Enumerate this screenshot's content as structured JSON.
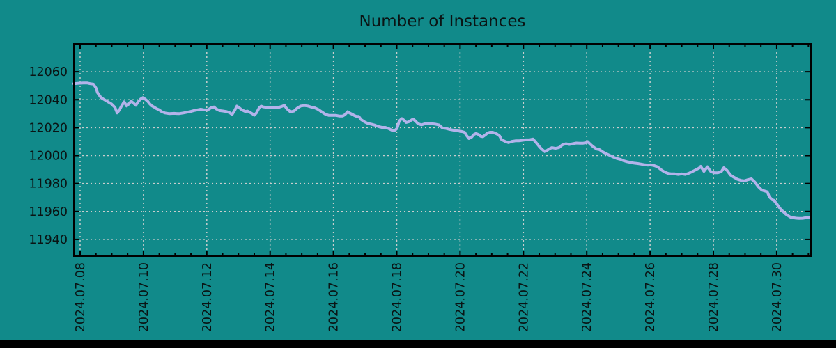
{
  "title": "Number of Instances",
  "colors": {
    "background": "#118a8a",
    "line": "#b2b3ea",
    "grid": "#c9cdcd",
    "axis": "#000000",
    "text": "#0a1414",
    "footer_bar": "#000000"
  },
  "chart_data": {
    "type": "line",
    "title": "Number of Instances",
    "xlabel": "",
    "ylabel": "",
    "grid": true,
    "legend": "none",
    "ylim": [
      11928,
      12080
    ],
    "xlim_days": [
      -0.198,
      23.08
    ],
    "y_ticks": [
      11940,
      11960,
      11980,
      12000,
      12020,
      12040,
      12060
    ],
    "x_ticks": [
      {
        "day": 0,
        "label": "2024.07.08"
      },
      {
        "day": 2,
        "label": "2024.07.10"
      },
      {
        "day": 4,
        "label": "2024.07.12"
      },
      {
        "day": 6,
        "label": "2024.07.14"
      },
      {
        "day": 8,
        "label": "2024.07.16"
      },
      {
        "day": 10,
        "label": "2024.07.18"
      },
      {
        "day": 12,
        "label": "2024.07.20"
      },
      {
        "day": 14,
        "label": "2024.07.22"
      },
      {
        "day": 16,
        "label": "2024.07.24"
      },
      {
        "day": 18,
        "label": "2024.07.26"
      },
      {
        "day": 20,
        "label": "2024.07.28"
      },
      {
        "day": 22,
        "label": "2024.07.30"
      }
    ],
    "minor_x_step_days": 0.5,
    "series": [
      {
        "name": "instances",
        "points": [
          [
            -0.2,
            12051.5
          ],
          [
            -0.05,
            12051.8
          ],
          [
            0.1,
            12052.0
          ],
          [
            0.22,
            12052.0
          ],
          [
            0.32,
            12051.5
          ],
          [
            0.42,
            12051.2
          ],
          [
            0.5,
            12048.5
          ],
          [
            0.55,
            12045.0
          ],
          [
            0.66,
            12041.5
          ],
          [
            0.77,
            12040.0
          ],
          [
            0.88,
            12038.5
          ],
          [
            0.99,
            12037.0
          ],
          [
            1.1,
            12034.5
          ],
          [
            1.17,
            12030.5
          ],
          [
            1.25,
            12033.0
          ],
          [
            1.32,
            12036.0
          ],
          [
            1.39,
            12038.5
          ],
          [
            1.47,
            12035.5
          ],
          [
            1.54,
            12037.0
          ],
          [
            1.61,
            12039.0
          ],
          [
            1.69,
            12037.5
          ],
          [
            1.76,
            12036.0
          ],
          [
            1.83,
            12038.5
          ],
          [
            1.91,
            12040.5
          ],
          [
            1.98,
            12041.5
          ],
          [
            2.05,
            12040.5
          ],
          [
            2.13,
            12039.0
          ],
          [
            2.2,
            12037.0
          ],
          [
            2.27,
            12035.5
          ],
          [
            2.35,
            12034.5
          ],
          [
            2.42,
            12033.5
          ],
          [
            2.49,
            12032.8
          ],
          [
            2.57,
            12031.5
          ],
          [
            2.68,
            12030.5
          ],
          [
            2.82,
            12030.0
          ],
          [
            2.97,
            12030.2
          ],
          [
            3.12,
            12030.0
          ],
          [
            3.26,
            12030.5
          ],
          [
            3.37,
            12031.0
          ],
          [
            3.48,
            12031.5
          ],
          [
            3.59,
            12032.2
          ],
          [
            3.7,
            12032.7
          ],
          [
            3.81,
            12033.2
          ],
          [
            3.92,
            12032.7
          ],
          [
            4.03,
            12032.7
          ],
          [
            4.14,
            12034.3
          ],
          [
            4.23,
            12034.8
          ],
          [
            4.29,
            12033.5
          ],
          [
            4.4,
            12032.2
          ],
          [
            4.51,
            12031.9
          ],
          [
            4.62,
            12031.5
          ],
          [
            4.73,
            12030.6
          ],
          [
            4.8,
            12029.4
          ],
          [
            4.89,
            12032.7
          ],
          [
            4.95,
            12035.4
          ],
          [
            5.02,
            12034.3
          ],
          [
            5.11,
            12032.7
          ],
          [
            5.22,
            12031.5
          ],
          [
            5.28,
            12031.9
          ],
          [
            5.35,
            12031.1
          ],
          [
            5.44,
            12029.9
          ],
          [
            5.5,
            12028.9
          ],
          [
            5.57,
            12030.6
          ],
          [
            5.66,
            12034.3
          ],
          [
            5.72,
            12035.4
          ],
          [
            5.79,
            12034.8
          ],
          [
            5.9,
            12034.5
          ],
          [
            6.01,
            12034.5
          ],
          [
            6.12,
            12034.5
          ],
          [
            6.27,
            12034.5
          ],
          [
            6.38,
            12035.3
          ],
          [
            6.45,
            12036.0
          ],
          [
            6.53,
            12033.5
          ],
          [
            6.64,
            12031.3
          ],
          [
            6.75,
            12031.8
          ],
          [
            6.86,
            12034.0
          ],
          [
            6.97,
            12035.5
          ],
          [
            7.08,
            12035.8
          ],
          [
            7.19,
            12035.5
          ],
          [
            7.3,
            12034.7
          ],
          [
            7.41,
            12034.2
          ],
          [
            7.52,
            12033.0
          ],
          [
            7.63,
            12031.3
          ],
          [
            7.74,
            12029.7
          ],
          [
            7.85,
            12028.8
          ],
          [
            7.96,
            12028.8
          ],
          [
            8.07,
            12028.8
          ],
          [
            8.18,
            12028.3
          ],
          [
            8.29,
            12028.3
          ],
          [
            8.36,
            12029.2
          ],
          [
            8.45,
            12031.4
          ],
          [
            8.51,
            12030.5
          ],
          [
            8.58,
            12029.7
          ],
          [
            8.65,
            12028.8
          ],
          [
            8.73,
            12028.0
          ],
          [
            8.8,
            12028.0
          ],
          [
            8.87,
            12025.9
          ],
          [
            8.98,
            12024.2
          ],
          [
            9.09,
            12023.0
          ],
          [
            9.2,
            12022.5
          ],
          [
            9.31,
            12021.8
          ],
          [
            9.42,
            12020.8
          ],
          [
            9.53,
            12020.2
          ],
          [
            9.64,
            12020.2
          ],
          [
            9.75,
            12019.3
          ],
          [
            9.86,
            12018.0
          ],
          [
            9.95,
            12018.2
          ],
          [
            10.01,
            12019.5
          ],
          [
            10.08,
            12024.8
          ],
          [
            10.16,
            12026.5
          ],
          [
            10.23,
            12025.3
          ],
          [
            10.3,
            12023.7
          ],
          [
            10.38,
            12024.2
          ],
          [
            10.45,
            12025.3
          ],
          [
            10.52,
            12026.2
          ],
          [
            10.6,
            12024.5
          ],
          [
            10.67,
            12022.8
          ],
          [
            10.78,
            12022.0
          ],
          [
            10.89,
            12022.8
          ],
          [
            11.0,
            12022.8
          ],
          [
            11.11,
            12022.8
          ],
          [
            11.22,
            12022.5
          ],
          [
            11.33,
            12022.0
          ],
          [
            11.44,
            12019.8
          ],
          [
            11.55,
            12019.5
          ],
          [
            11.66,
            12018.8
          ],
          [
            11.77,
            12018.3
          ],
          [
            11.88,
            12017.8
          ],
          [
            11.99,
            12017.5
          ],
          [
            12.06,
            12017.2
          ],
          [
            12.14,
            12016.7
          ],
          [
            12.21,
            12014.2
          ],
          [
            12.28,
            12012.2
          ],
          [
            12.37,
            12013.3
          ],
          [
            12.43,
            12015.0
          ],
          [
            12.5,
            12015.8
          ],
          [
            12.59,
            12015.0
          ],
          [
            12.65,
            12013.8
          ],
          [
            12.72,
            12013.5
          ],
          [
            12.81,
            12015.0
          ],
          [
            12.87,
            12016.2
          ],
          [
            12.94,
            12016.7
          ],
          [
            13.03,
            12016.7
          ],
          [
            13.09,
            12016.2
          ],
          [
            13.16,
            12015.5
          ],
          [
            13.25,
            12014.0
          ],
          [
            13.31,
            12011.5
          ],
          [
            13.42,
            12010.2
          ],
          [
            13.53,
            12009.3
          ],
          [
            13.64,
            12010.2
          ],
          [
            13.75,
            12010.6
          ],
          [
            13.86,
            12010.6
          ],
          [
            13.97,
            12011.0
          ],
          [
            14.08,
            12011.3
          ],
          [
            14.19,
            12011.3
          ],
          [
            14.3,
            12011.8
          ],
          [
            14.37,
            12010.2
          ],
          [
            14.46,
            12007.7
          ],
          [
            14.52,
            12006.0
          ],
          [
            14.59,
            12004.4
          ],
          [
            14.68,
            12002.8
          ],
          [
            14.74,
            12003.6
          ],
          [
            14.81,
            12004.7
          ],
          [
            14.9,
            12005.7
          ],
          [
            15.01,
            12005.2
          ],
          [
            15.12,
            12005.7
          ],
          [
            15.23,
            12007.7
          ],
          [
            15.34,
            12008.5
          ],
          [
            15.45,
            12008.0
          ],
          [
            15.56,
            12008.5
          ],
          [
            15.67,
            12009.0
          ],
          [
            15.78,
            12008.9
          ],
          [
            15.89,
            12008.9
          ],
          [
            16.0,
            12009.3
          ],
          [
            16.03,
            12010.0
          ],
          [
            16.1,
            12008.4
          ],
          [
            16.18,
            12006.8
          ],
          [
            16.25,
            12005.6
          ],
          [
            16.32,
            12004.6
          ],
          [
            16.4,
            12004.3
          ],
          [
            16.51,
            12002.6
          ],
          [
            16.62,
            12001.3
          ],
          [
            16.73,
            12000.1
          ],
          [
            16.84,
            11998.9
          ],
          [
            16.95,
            11997.9
          ],
          [
            17.06,
            11997.3
          ],
          [
            17.17,
            11996.3
          ],
          [
            17.28,
            11995.6
          ],
          [
            17.39,
            11995.1
          ],
          [
            17.5,
            11994.6
          ],
          [
            17.61,
            11994.3
          ],
          [
            17.72,
            11993.9
          ],
          [
            17.83,
            11993.4
          ],
          [
            17.94,
            11993.2
          ],
          [
            18.01,
            11993.4
          ],
          [
            18.12,
            11992.9
          ],
          [
            18.23,
            11992.0
          ],
          [
            18.34,
            11990.0
          ],
          [
            18.45,
            11988.3
          ],
          [
            18.56,
            11987.3
          ],
          [
            18.67,
            11986.9
          ],
          [
            18.78,
            11986.9
          ],
          [
            18.89,
            11986.5
          ],
          [
            19.0,
            11986.9
          ],
          [
            19.11,
            11986.5
          ],
          [
            19.22,
            11987.3
          ],
          [
            19.33,
            11988.5
          ],
          [
            19.44,
            11989.8
          ],
          [
            19.55,
            11991.1
          ],
          [
            19.6,
            11992.3
          ],
          [
            19.7,
            11988.7
          ],
          [
            19.81,
            11992.0
          ],
          [
            19.92,
            11988.5
          ],
          [
            20.03,
            11987.7
          ],
          [
            20.14,
            11987.7
          ],
          [
            20.25,
            11988.5
          ],
          [
            20.33,
            11991.3
          ],
          [
            20.43,
            11989.4
          ],
          [
            20.54,
            11986.0
          ],
          [
            20.65,
            11984.4
          ],
          [
            20.76,
            11983.0
          ],
          [
            20.87,
            11982.2
          ],
          [
            20.98,
            11981.9
          ],
          [
            21.09,
            11982.7
          ],
          [
            21.2,
            11983.3
          ],
          [
            21.31,
            11981.0
          ],
          [
            21.42,
            11977.7
          ],
          [
            21.53,
            11975.3
          ],
          [
            21.7,
            11974.1
          ],
          [
            21.77,
            11970.3
          ],
          [
            21.86,
            11968.3
          ],
          [
            21.91,
            11968.0
          ],
          [
            22.0,
            11965.5
          ],
          [
            22.11,
            11962.0
          ],
          [
            22.22,
            11959.5
          ],
          [
            22.29,
            11958.0
          ],
          [
            22.44,
            11955.8
          ],
          [
            22.6,
            11955.2
          ],
          [
            22.71,
            11955.0
          ],
          [
            22.82,
            11955.1
          ],
          [
            22.94,
            11955.6
          ],
          [
            23.08,
            11956.0
          ]
        ]
      }
    ]
  }
}
